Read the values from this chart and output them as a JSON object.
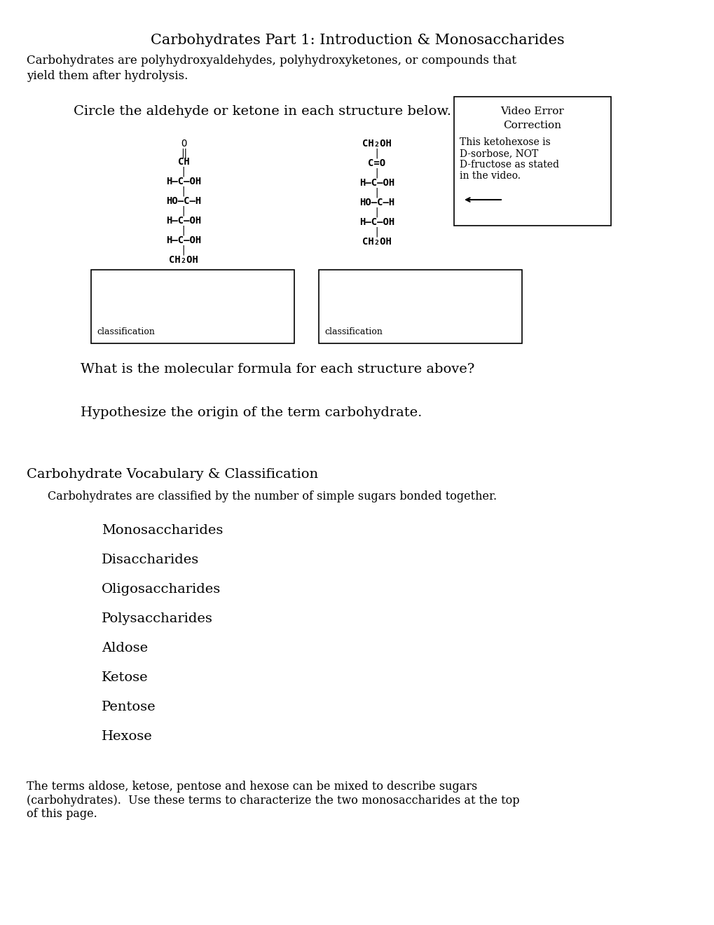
{
  "title": "Carbohydrates Part 1: Introduction & Monosaccharides",
  "intro_line1": "Carbohydrates are polyhydroxyaldehydes, polyhydroxyketones, or compounds that",
  "intro_line2": "yield them after hydrolysis.",
  "circle_instruction": "Circle the aldehyde or ketone in each structure below.",
  "video_error_line1": "Video Error",
  "video_error_line2": "Correction",
  "video_error_body1": "This ketohexose is",
  "video_error_body2": "D-sorbose, NOT",
  "video_error_body3": "D-fructose as stated",
  "video_error_body4": "in the video.",
  "classification_label": "classification",
  "question1": "What is the molecular formula for each structure above?",
  "question2": "Hypothesize the origin of the term carbohydrate.",
  "vocab_title": "Carbohydrate Vocabulary & Classification",
  "vocab_subtitle": "Carbohydrates are classified by the number of simple sugars bonded together.",
  "vocab_terms": [
    "Monosaccharides",
    "Disaccharides",
    "Oligosaccharides",
    "Polysaccharides",
    "Aldose",
    "Ketose",
    "Pentose",
    "Hexose"
  ],
  "footer": "The terms aldose, ketose, pentose and hexose can be mixed to describe sugars\n(carbohydrates).  Use these terms to characterize the two monosaccharides at the top\nof this page.",
  "bg_color": "#ffffff",
  "text_color": "#000000"
}
